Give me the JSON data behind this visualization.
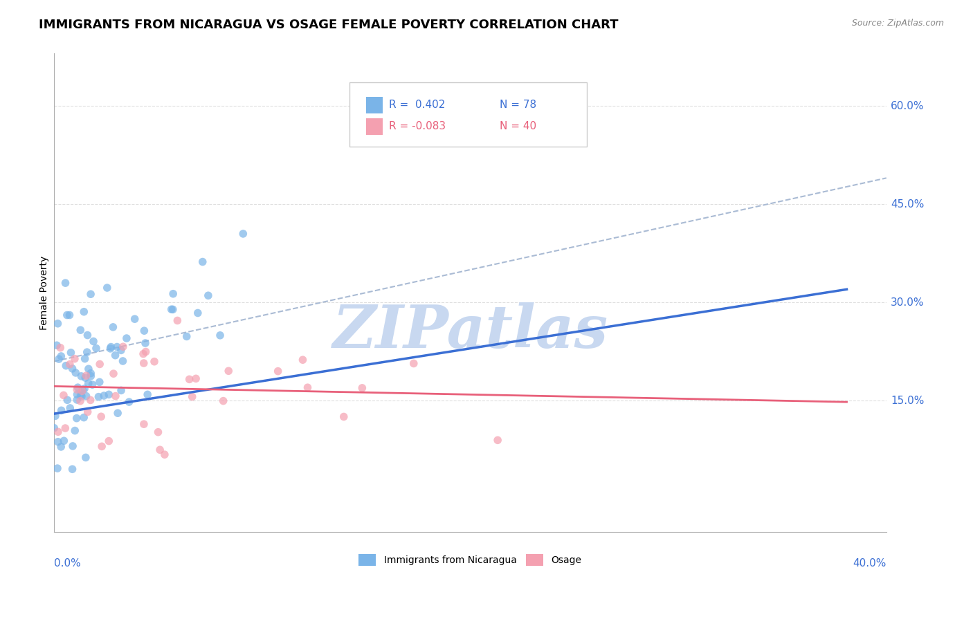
{
  "title": "IMMIGRANTS FROM NICARAGUA VS OSAGE FEMALE POVERTY CORRELATION CHART",
  "source_text": "Source: ZipAtlas.com",
  "xlabel_bottom_left": "0.0%",
  "xlabel_bottom_right": "40.0%",
  "ylabel": "Female Poverty",
  "ylabel_ticks": [
    0.15,
    0.3,
    0.45,
    0.6
  ],
  "ylabel_tick_labels": [
    "15.0%",
    "30.0%",
    "45.0%",
    "60.0%"
  ],
  "xlim": [
    0.0,
    0.42
  ],
  "ylim": [
    -0.05,
    0.68
  ],
  "series1_label": "Immigrants from Nicaragua",
  "series1_color": "#7ab4e8",
  "series1_R": 0.402,
  "series1_N": 78,
  "series2_label": "Osage",
  "series2_color": "#f4a0b0",
  "series2_R": -0.083,
  "series2_N": 40,
  "trend1_color": "#3b6fd4",
  "trend1_y0": 0.13,
  "trend1_y1": 0.32,
  "trend2_color": "#e8607a",
  "trend2_y0": 0.172,
  "trend2_y1": 0.148,
  "dash_line_color": "#aabbd4",
  "dash_line_x0": 0.0,
  "dash_line_y0": 0.21,
  "dash_line_x1": 0.42,
  "dash_line_y1": 0.49,
  "legend_R_color1": "#3b6fd4",
  "legend_R_color2": "#e8607a",
  "watermark": "ZIPatlas",
  "watermark_color": "#c8d8f0",
  "background_color": "#ffffff",
  "grid_color": "#d8d8d8",
  "title_fontsize": 13,
  "axis_label_fontsize": 10,
  "tick_label_fontsize": 11,
  "source_fontsize": 9
}
